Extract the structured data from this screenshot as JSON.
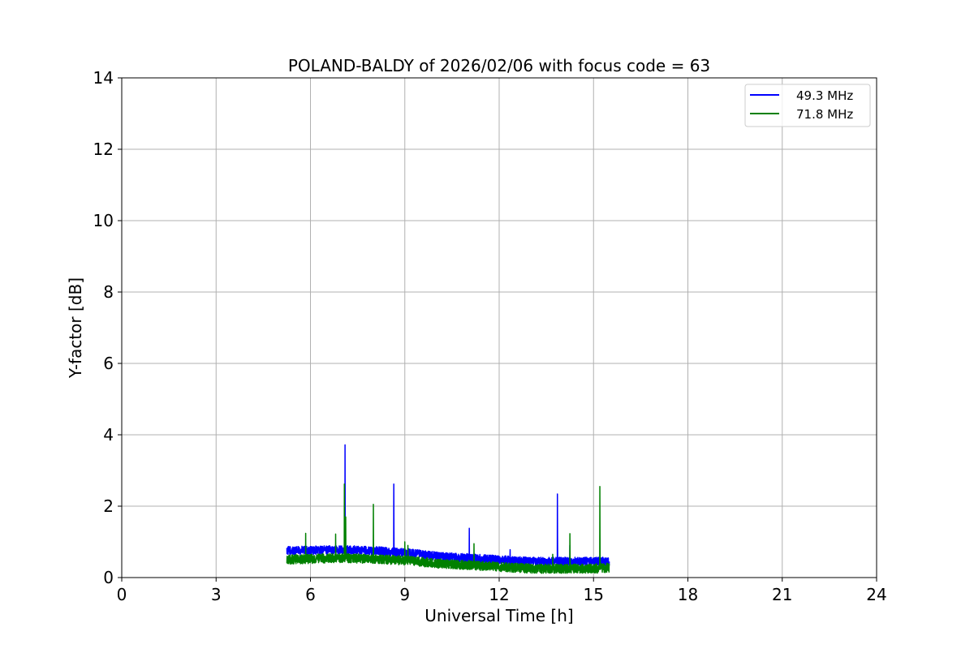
{
  "chart_data": {
    "type": "line",
    "title": "POLAND-BALDY of 2026/02/06 with focus code = 63",
    "xlabel": "Universal Time [h]",
    "ylabel": "Y-factor [dB]",
    "xlim": [
      0,
      24
    ],
    "ylim": [
      0,
      14
    ],
    "xticks": [
      0,
      3,
      6,
      9,
      12,
      15,
      18,
      21,
      24
    ],
    "yticks": [
      0,
      2,
      4,
      6,
      8,
      10,
      12,
      14
    ],
    "grid": true,
    "legend_position": "top-right",
    "series": [
      {
        "name": "49.3 MHz",
        "color": "#0000ff",
        "x_start": 5.25,
        "x_end": 15.5,
        "baseline": [
          [
            5.25,
            0.75
          ],
          [
            7.0,
            0.78
          ],
          [
            8.0,
            0.75
          ],
          [
            9.0,
            0.7
          ],
          [
            10.0,
            0.6
          ],
          [
            11.0,
            0.55
          ],
          [
            12.0,
            0.5
          ],
          [
            13.0,
            0.45
          ],
          [
            14.0,
            0.45
          ],
          [
            15.0,
            0.45
          ],
          [
            15.5,
            0.45
          ]
        ],
        "noise": 0.12,
        "spikes": [
          [
            7.1,
            3.72
          ],
          [
            8.65,
            2.62
          ],
          [
            11.05,
            1.38
          ],
          [
            12.35,
            0.78
          ],
          [
            13.85,
            2.34
          ],
          [
            14.25,
            0.9
          ]
        ]
      },
      {
        "name": "71.8 MHz",
        "color": "#008000",
        "x_start": 5.25,
        "x_end": 15.5,
        "baseline": [
          [
            5.25,
            0.5
          ],
          [
            7.0,
            0.55
          ],
          [
            8.0,
            0.52
          ],
          [
            9.0,
            0.48
          ],
          [
            10.0,
            0.4
          ],
          [
            11.0,
            0.35
          ],
          [
            12.0,
            0.3
          ],
          [
            13.0,
            0.25
          ],
          [
            14.0,
            0.25
          ],
          [
            15.0,
            0.25
          ],
          [
            15.5,
            0.28
          ]
        ],
        "noise": 0.13,
        "spikes": [
          [
            5.85,
            1.24
          ],
          [
            6.8,
            1.22
          ],
          [
            7.08,
            2.62
          ],
          [
            7.12,
            1.7
          ],
          [
            8.0,
            2.05
          ],
          [
            9.0,
            1.0
          ],
          [
            9.1,
            0.9
          ],
          [
            11.2,
            0.95
          ],
          [
            13.7,
            0.65
          ],
          [
            14.25,
            1.23
          ],
          [
            15.2,
            2.55
          ]
        ]
      }
    ]
  }
}
